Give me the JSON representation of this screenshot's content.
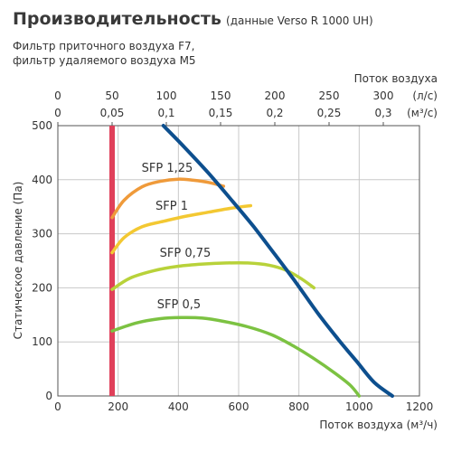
{
  "header": {
    "title": "Производительность",
    "subtitle": "(данные Verso R 1000 UH)",
    "note_line1": "Фильтр приточного воздуха F7,",
    "note_line2": "фильтр удаляемого воздуха M5"
  },
  "chart_data": {
    "type": "line",
    "ylabel": "Статическое давление (Па)",
    "xlabel": "Поток воздуха (м³/ч)",
    "top_axis_title": "Поток воздуха",
    "top_axis_units": [
      "(л/с)",
      "(м³/с)"
    ],
    "top_ticks_ls": [
      "0",
      "50",
      "100",
      "150",
      "200",
      "250",
      "300"
    ],
    "top_ticks_m3s": [
      "0",
      "0,05",
      "0,1",
      "0,15",
      "0,2",
      "0,25",
      "0,3"
    ],
    "x_ticks": [
      "0",
      "200",
      "400",
      "600",
      "800",
      "1000",
      "1200"
    ],
    "y_ticks": [
      "0",
      "100",
      "200",
      "300",
      "400",
      "500"
    ],
    "xlim": [
      0,
      1200
    ],
    "ylim": [
      0,
      500
    ],
    "grid": true,
    "min_flow_line": {
      "x": 180,
      "color": "#e0405a"
    },
    "series": [
      {
        "name": "SFP 1,25",
        "color": "#ef9a3a",
        "x": [
          180,
          220,
          280,
          340,
          400,
          450,
          500,
          550
        ],
        "y": [
          330,
          362,
          387,
          397,
          401,
          399,
          395,
          388
        ]
      },
      {
        "name": "SFP 1",
        "color": "#f3c832",
        "x": [
          180,
          220,
          280,
          350,
          420,
          500,
          560,
          610,
          640
        ],
        "y": [
          265,
          293,
          313,
          323,
          332,
          340,
          346,
          350,
          352
        ]
      },
      {
        "name": "SFP 0,75",
        "color": "#b8d23a",
        "x": [
          180,
          240,
          320,
          400,
          480,
          560,
          630,
          700,
          760,
          810,
          850
        ],
        "y": [
          197,
          218,
          232,
          240,
          244,
          246,
          246,
          242,
          232,
          216,
          200
        ]
      },
      {
        "name": "SFP 0,5",
        "color": "#7cc242",
        "x": [
          180,
          260,
          340,
          410,
          480,
          550,
          630,
          710,
          780,
          850,
          920,
          970,
          1000
        ],
        "y": [
          120,
          135,
          143,
          145,
          144,
          138,
          128,
          113,
          93,
          69,
          42,
          20,
          0
        ]
      },
      {
        "name": "",
        "color": "#0d4f8e",
        "x": [
          350,
          420,
          500,
          580,
          650,
          720,
          790,
          860,
          930,
          990,
          1050,
          1110
        ],
        "y": [
          500,
          460,
          412,
          360,
          313,
          262,
          210,
          155,
          105,
          65,
          25,
          0
        ]
      }
    ]
  }
}
